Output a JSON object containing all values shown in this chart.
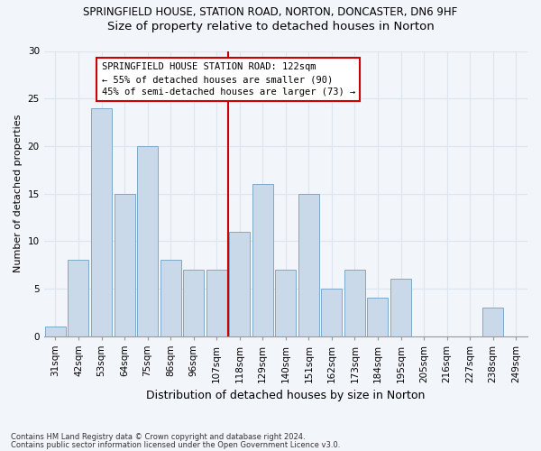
{
  "title1": "SPRINGFIELD HOUSE, STATION ROAD, NORTON, DONCASTER, DN6 9HF",
  "title2": "Size of property relative to detached houses in Norton",
  "xlabel": "Distribution of detached houses by size in Norton",
  "ylabel": "Number of detached properties",
  "categories": [
    "31sqm",
    "42sqm",
    "53sqm",
    "64sqm",
    "75sqm",
    "86sqm",
    "96sqm",
    "107sqm",
    "118sqm",
    "129sqm",
    "140sqm",
    "151sqm",
    "162sqm",
    "173sqm",
    "184sqm",
    "195sqm",
    "205sqm",
    "216sqm",
    "227sqm",
    "238sqm",
    "249sqm"
  ],
  "values": [
    1,
    8,
    24,
    15,
    20,
    8,
    7,
    7,
    11,
    16,
    7,
    15,
    5,
    7,
    4,
    6,
    0,
    0,
    0,
    3,
    0
  ],
  "bar_color": "#c9d9ea",
  "bar_edge_color": "#7aaac8",
  "vline_x": 8,
  "annotation_text": "SPRINGFIELD HOUSE STATION ROAD: 122sqm\n← 55% of detached houses are smaller (90)\n45% of semi-detached houses are larger (73) →",
  "ylim": [
    0,
    30
  ],
  "yticks": [
    0,
    5,
    10,
    15,
    20,
    25,
    30
  ],
  "footer1": "Contains HM Land Registry data © Crown copyright and database right 2024.",
  "footer2": "Contains public sector information licensed under the Open Government Licence v3.0.",
  "background_color": "#f2f5fa",
  "grid_color": "#dce6f0",
  "annotation_box_color": "#ffffff",
  "annotation_box_edge": "#cc0000",
  "vline_color": "#cc0000",
  "title1_fontsize": 8.5,
  "title2_fontsize": 9.5,
  "ylabel_fontsize": 8,
  "xlabel_fontsize": 9,
  "tick_fontsize": 7.5,
  "footer_fontsize": 6.0,
  "annotation_fontsize": 7.5
}
